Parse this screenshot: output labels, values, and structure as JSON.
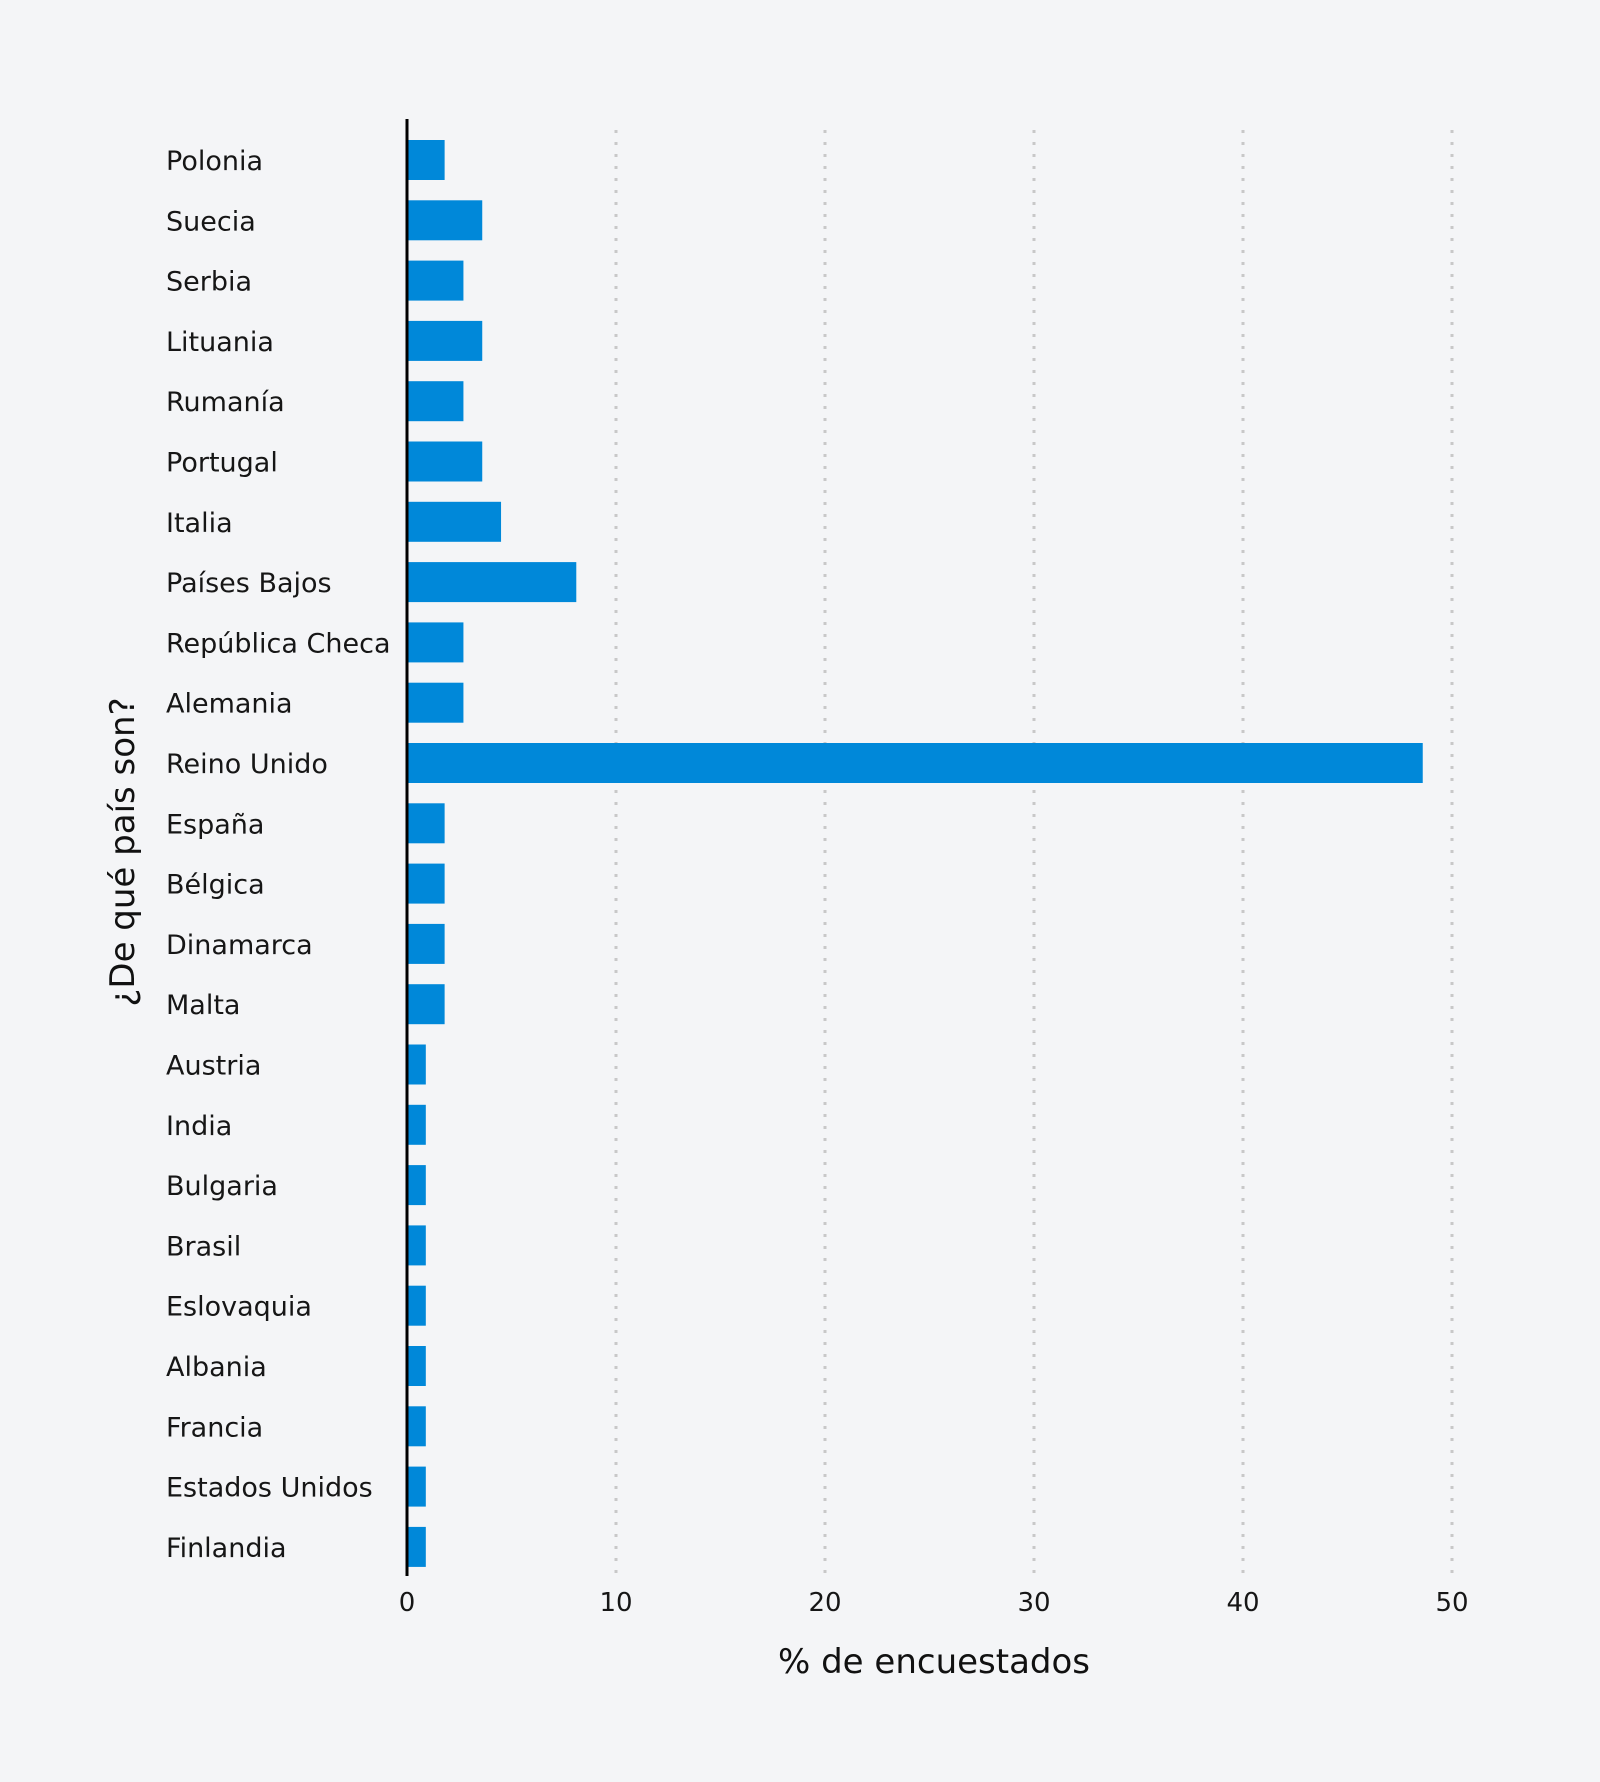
{
  "chart_data": {
    "type": "bar",
    "orientation": "horizontal",
    "categories": [
      "Polonia",
      "Suecia",
      "Serbia",
      "Lituania",
      "Rumanía",
      "Portugal",
      "Italia",
      "Países Bajos",
      "República Checa",
      "Alemania",
      "Reino Unido",
      "España",
      "Bélgica",
      "Dinamarca",
      "Malta",
      "Austria",
      "India",
      "Bulgaria",
      "Brasil",
      "Eslovaquia",
      "Albania",
      "Francia",
      "Estados Unidos",
      "Finlandia"
    ],
    "values": [
      1.8,
      3.6,
      2.7,
      3.6,
      2.7,
      3.6,
      4.5,
      8.1,
      2.7,
      2.7,
      48.6,
      1.8,
      1.8,
      1.8,
      1.8,
      0.9,
      0.9,
      0.9,
      0.9,
      0.9,
      0.9,
      0.9,
      0.9,
      0.9
    ],
    "xlabel": "% de encuestados",
    "ylabel": "¿De qué país son?",
    "xlim": [
      0,
      50
    ],
    "xticks": [
      "0",
      "10",
      "20",
      "30",
      "40",
      "50"
    ],
    "grid": "vertical dotted",
    "colors": {
      "bar": "#0088d9",
      "background": "#f4f5f7",
      "grid": "#c8c8c8"
    }
  }
}
